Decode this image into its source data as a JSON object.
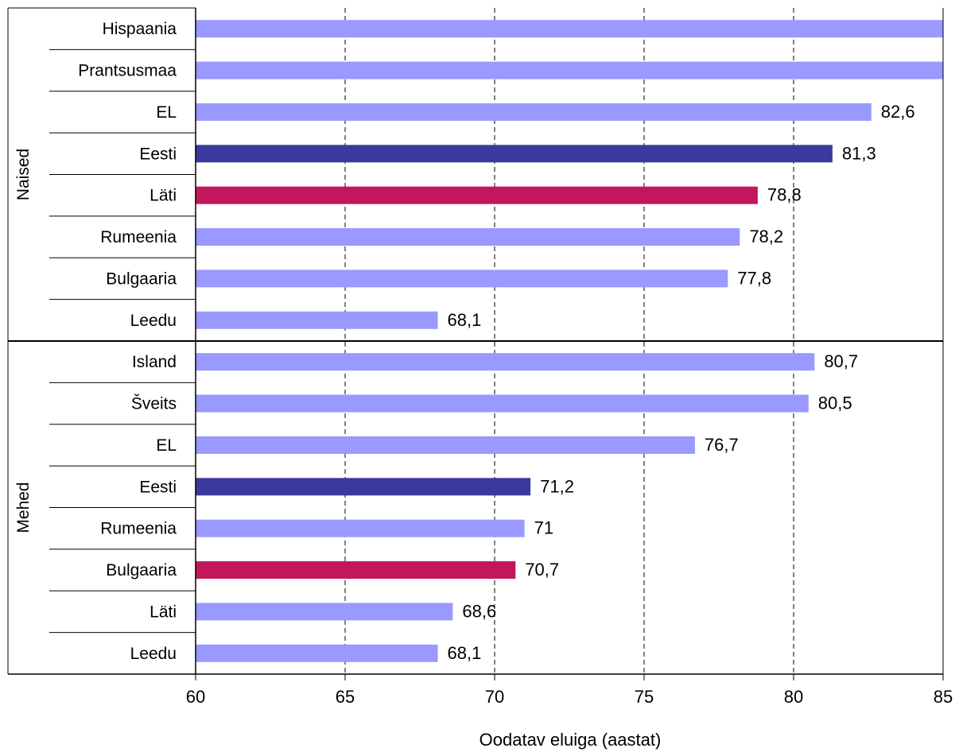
{
  "chart_data": {
    "type": "bar",
    "orientation": "horizontal",
    "xlabel": "Oodatav eluiga (aastat)",
    "xlim": [
      60,
      85
    ],
    "x_ticks": [
      "60",
      "65",
      "70",
      "75",
      "80",
      "85"
    ],
    "grid": "vertical dashed",
    "colors": {
      "default": "#9999ff",
      "highlight_dark": "#3a3a9c",
      "highlight_red": "#c2185b",
      "axis": "#000000"
    },
    "groups": [
      {
        "name": "Naised",
        "bars": [
          {
            "label": "Hispaania",
            "value": 85,
            "value_label": "",
            "color": "#9999ff"
          },
          {
            "label": "Prantsusmaa",
            "value": 85,
            "value_label": "",
            "color": "#9999ff"
          },
          {
            "label": "EL",
            "value": 82.6,
            "value_label": "82,6",
            "color": "#9999ff"
          },
          {
            "label": "Eesti",
            "value": 81.3,
            "value_label": "81,3",
            "color": "#3a3a9c"
          },
          {
            "label": "Läti",
            "value": 78.8,
            "value_label": "78,8",
            "color": "#c2185b"
          },
          {
            "label": "Rumeenia",
            "value": 78.2,
            "value_label": "78,2",
            "color": "#9999ff"
          },
          {
            "label": "Bulgaaria",
            "value": 77.8,
            "value_label": "77,8",
            "color": "#9999ff"
          },
          {
            "label": "Leedu",
            "value": 68.1,
            "value_label": "68,1",
            "color": "#9999ff"
          }
        ]
      },
      {
        "name": "Mehed",
        "bars": [
          {
            "label": "Island",
            "value": 80.7,
            "value_label": "80,7",
            "color": "#9999ff"
          },
          {
            "label": "Šveits",
            "value": 80.5,
            "value_label": "80,5",
            "color": "#9999ff"
          },
          {
            "label": "EL",
            "value": 76.7,
            "value_label": "76,7",
            "color": "#9999ff"
          },
          {
            "label": "Eesti",
            "value": 71.2,
            "value_label": "71,2",
            "color": "#3a3a9c"
          },
          {
            "label": "Rumeenia",
            "value": 71,
            "value_label": "71",
            "color": "#9999ff"
          },
          {
            "label": "Bulgaaria",
            "value": 70.7,
            "value_label": "70,7",
            "color": "#c2185b"
          },
          {
            "label": "Läti",
            "value": 68.6,
            "value_label": "68,6",
            "color": "#9999ff"
          },
          {
            "label": "Leedu",
            "value": 68.1,
            "value_label": "68,1",
            "color": "#9999ff"
          }
        ]
      }
    ]
  }
}
